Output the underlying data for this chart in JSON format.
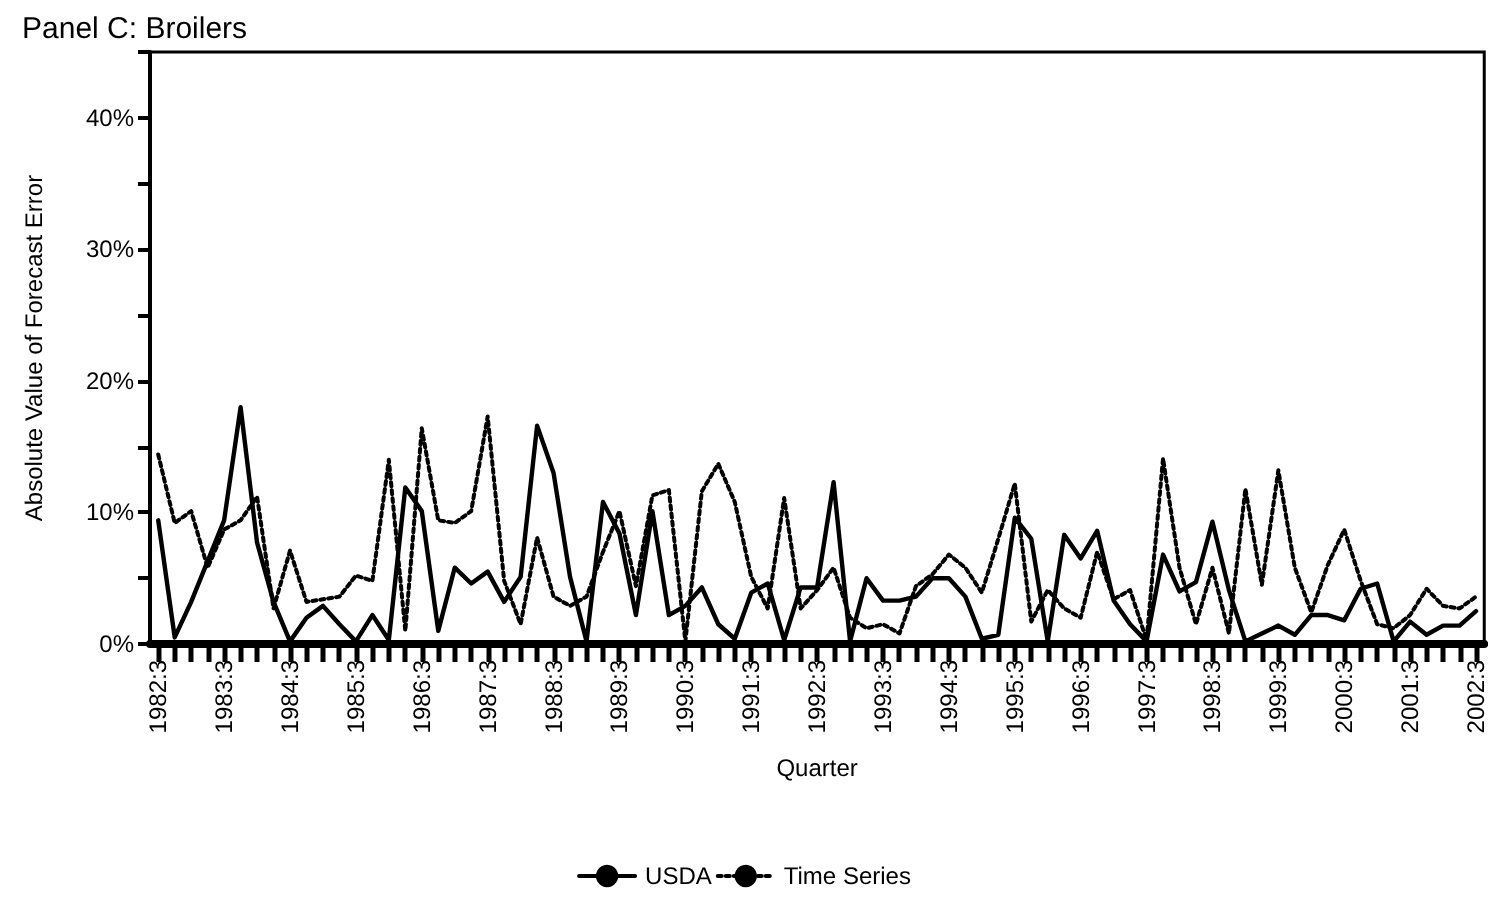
{
  "chart_data": {
    "type": "line",
    "title": "Panel C: Broilers",
    "xlabel": "Quarter",
    "ylabel": "Absolute Value of Forecast Error",
    "categories": [
      "1982:3",
      null,
      null,
      null,
      "1983:3",
      null,
      null,
      null,
      "1984:3",
      null,
      null,
      null,
      "1985:3",
      null,
      null,
      null,
      "1986:3",
      null,
      null,
      null,
      "1987:3",
      null,
      null,
      null,
      "1988:3",
      null,
      null,
      null,
      "1989:3",
      null,
      null,
      null,
      "1990:3",
      null,
      null,
      null,
      "1991:3",
      null,
      null,
      null,
      "1992:3",
      null,
      null,
      null,
      "1993:3",
      null,
      null,
      null,
      "1994:3",
      null,
      null,
      null,
      "1995:3",
      null,
      null,
      null,
      "1996:3",
      null,
      null,
      null,
      "1997:3",
      null,
      null,
      null,
      "1998:3",
      null,
      null,
      null,
      "1999:3",
      null,
      null,
      null,
      "2000:3",
      null,
      null,
      null,
      "2001:3",
      null,
      null,
      null,
      "2002:3"
    ],
    "series": [
      {
        "name": "USDA",
        "color": "#000000",
        "line_style": "solid",
        "values": [
          9.4,
          0.5,
          3.2,
          6.3,
          9.4,
          18.0,
          7.7,
          3.2,
          0.2,
          2.0,
          2.9,
          1.5,
          0.2,
          2.2,
          0.3,
          11.9,
          10.1,
          1.0,
          5.8,
          4.6,
          5.5,
          3.2,
          5.1,
          16.6,
          13.0,
          5.1,
          0.2,
          10.8,
          8.4,
          2.2,
          10.1,
          2.2,
          2.9,
          4.3,
          1.5,
          0.4,
          3.9,
          4.6,
          0.3,
          4.3,
          4.3,
          12.3,
          0.2,
          5.0,
          3.3,
          3.3,
          3.6,
          5.0,
          5.0,
          3.6,
          0.4,
          0.7,
          9.6,
          8.0,
          0.2,
          8.3,
          6.5,
          8.6,
          3.3,
          1.5,
          0.2,
          6.8,
          4.0,
          4.7,
          9.3,
          4.1,
          0.2,
          0.8,
          1.4,
          0.7,
          2.2,
          2.2,
          1.8,
          4.2,
          4.6,
          0.2,
          1.7,
          0.7,
          1.4,
          1.4,
          2.5
        ]
      },
      {
        "name": "Time Series",
        "color": "#000000",
        "line_style": "dotted",
        "values": [
          14.4,
          9.2,
          10.1,
          5.8,
          8.7,
          9.4,
          11.2,
          2.7,
          7.1,
          3.2,
          3.4,
          3.6,
          5.2,
          4.8,
          14.0,
          1.0,
          16.4,
          9.4,
          9.2,
          10.1,
          17.3,
          4.8,
          1.5,
          8.1,
          3.6,
          2.9,
          3.6,
          7.0,
          10.1,
          4.4,
          11.3,
          11.7,
          0.2,
          11.6,
          13.7,
          10.8,
          5.1,
          2.7,
          11.1,
          2.7,
          4.1,
          5.8,
          2.0,
          1.2,
          1.5,
          0.8,
          4.4,
          5.3,
          6.8,
          5.8,
          3.9,
          8.0,
          12.2,
          1.7,
          4.1,
          2.7,
          2.0,
          7.0,
          3.4,
          4.1,
          0.3,
          14.1,
          5.8,
          1.5,
          5.8,
          0.8,
          11.8,
          4.5,
          13.2,
          5.8,
          2.4,
          6.0,
          8.7,
          4.8,
          1.5,
          1.2,
          2.2,
          4.2,
          2.9,
          2.7,
          3.6
        ]
      }
    ],
    "ylim": [
      0,
      45
    ],
    "yticks": [
      {
        "value": 0,
        "label": "0%"
      },
      {
        "value": 5,
        "label": null
      },
      {
        "value": 10,
        "label": "10%"
      },
      {
        "value": 15,
        "label": null
      },
      {
        "value": 20,
        "label": "20%"
      },
      {
        "value": 25,
        "label": null
      },
      {
        "value": 30,
        "label": "30%"
      },
      {
        "value": 35,
        "label": null
      },
      {
        "value": 40,
        "label": "40%"
      },
      {
        "value": 45,
        "label": null
      }
    ],
    "legend": "bottom",
    "marker": "none"
  }
}
